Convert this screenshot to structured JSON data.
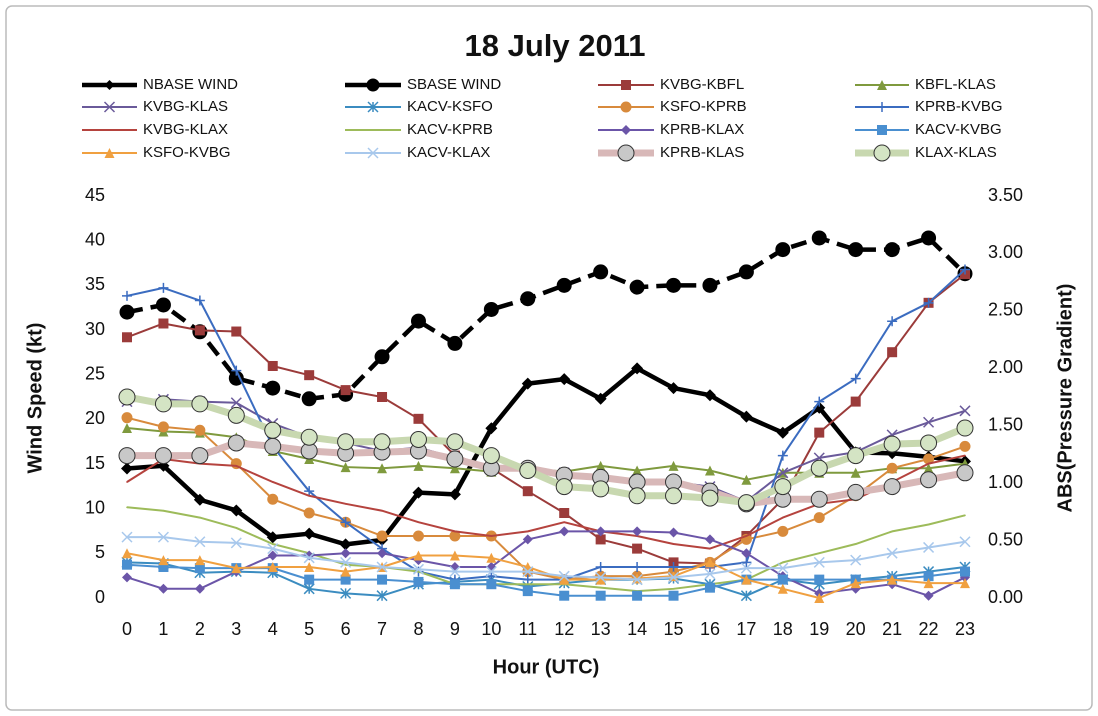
{
  "chart_data": {
    "type": "line",
    "title": "18 July 2011",
    "x_label": "Hour (UTC)",
    "y_label": "Wind Speed (kt)",
    "y2_label": "ABS(Pressure Gradient)",
    "categories": [
      "0",
      "1",
      "2",
      "3",
      "4",
      "5",
      "6",
      "7",
      "8",
      "9",
      "10",
      "11",
      "12",
      "13",
      "14",
      "15",
      "16",
      "17",
      "18",
      "19",
      "20",
      "21",
      "22",
      "23"
    ],
    "ylim": [
      0,
      45
    ],
    "yticks": [
      0,
      5,
      10,
      15,
      20,
      25,
      30,
      35,
      40,
      45
    ],
    "y2lim": [
      0,
      3.5
    ],
    "y2ticks": [
      {
        "value": 0,
        "label": "0.00"
      },
      {
        "value": 0.5,
        "label": "0.50"
      },
      {
        "value": 1,
        "label": "1.00"
      },
      {
        "value": 1.5,
        "label": "1.50"
      },
      {
        "value": 2,
        "label": "2.00"
      },
      {
        "value": 2.5,
        "label": "2.50"
      },
      {
        "value": 3,
        "label": "3.00"
      },
      {
        "value": 3.5,
        "label": "3.50"
      }
    ],
    "grid": false,
    "series": [
      {
        "name": "NBASE WIND",
        "color": "#000000",
        "marker": "diamond",
        "bold": true,
        "values": [
          14.5,
          14.8,
          11,
          9.8,
          6.8,
          7.2,
          6,
          6.5,
          11.8,
          11.6,
          19,
          24,
          24.5,
          22.3,
          25.7,
          23.5,
          22.7,
          20.3,
          18.5,
          21.3,
          16.3,
          16.2,
          15.8,
          15.3
        ]
      },
      {
        "name": "SBASE WIND",
        "color": "#000000",
        "marker": "circle",
        "bold": true,
        "dashed": true,
        "values": [
          32,
          32.8,
          29.8,
          24.6,
          23.5,
          22.3,
          22.8,
          27,
          31,
          28.5,
          32.3,
          33.5,
          35,
          36.5,
          34.8,
          35,
          35,
          36.5,
          39,
          40.3,
          39,
          39,
          40.3,
          36.3
        ]
      },
      {
        "name": "KVBG-KBFL",
        "color": "#9b3b3a",
        "marker": "square",
        "axis": "y2",
        "values": [
          2.27,
          2.39,
          2.33,
          2.32,
          2.02,
          1.94,
          1.81,
          1.75,
          1.56,
          1.24,
          1.13,
          0.93,
          0.74,
          0.51,
          0.43,
          0.31,
          0.3,
          0.54,
          0.86,
          1.44,
          1.71,
          2.14,
          2.57,
          2.82
        ]
      },
      {
        "name": "KBFL-KLAS",
        "color": "#7f9a3e",
        "marker": "triangle",
        "axis": "y2",
        "values": [
          1.48,
          1.45,
          1.44,
          1.4,
          1.28,
          1.21,
          1.14,
          1.13,
          1.15,
          1.13,
          1.1,
          1.13,
          1.1,
          1.15,
          1.11,
          1.15,
          1.11,
          1.03,
          1.09,
          1.09,
          1.09,
          1.13,
          1.13,
          1.17
        ]
      },
      {
        "name": "KVBG-KLAS",
        "color": "#6a5a9a",
        "marker": "x",
        "axis": "y2",
        "values": [
          1.71,
          1.73,
          1.71,
          1.7,
          1.52,
          1.4,
          1.35,
          1.28,
          1.31,
          1.22,
          1.14,
          1.14,
          1.09,
          1.05,
          1.03,
          1.01,
          0.97,
          0.84,
          1.09,
          1.22,
          1.27,
          1.42,
          1.53,
          1.63
        ]
      },
      {
        "name": "KACV-KSFO",
        "color": "#3b8cc0",
        "marker": "asterisk",
        "axis": "y2",
        "values": [
          0.31,
          0.3,
          0.22,
          0.23,
          0.22,
          0.08,
          0.04,
          0.02,
          0.12,
          0.14,
          0.16,
          0.1,
          0.13,
          0.16,
          0.16,
          0.17,
          0.12,
          0.02,
          0.16,
          0.12,
          0.16,
          0.19,
          0.23,
          0.27
        ]
      },
      {
        "name": "KSFO-KPRB",
        "color": "#d88a3c",
        "marker": "circle",
        "axis": "y2",
        "values": [
          1.57,
          1.49,
          1.46,
          1.17,
          0.86,
          0.74,
          0.66,
          0.54,
          0.54,
          0.54,
          0.54,
          0.23,
          0.16,
          0.19,
          0.19,
          0.23,
          0.31,
          0.51,
          0.58,
          0.7,
          0.89,
          1.13,
          1.21,
          1.32
        ]
      },
      {
        "name": "KPRB-KVBG",
        "color": "#3b6cc0",
        "marker": "plus",
        "axis": "y2",
        "values": [
          2.63,
          2.7,
          2.59,
          1.98,
          1.32,
          0.93,
          0.66,
          0.43,
          0.23,
          0.16,
          0.19,
          0.16,
          0.16,
          0.27,
          0.27,
          0.27,
          0.27,
          0.31,
          1.24,
          1.71,
          1.91,
          2.41,
          2.57,
          2.86
        ]
      },
      {
        "name": "KVBG-KLAX",
        "color": "#b5433e",
        "marker": "none",
        "axis": "y2",
        "values": [
          1.01,
          1.21,
          1.17,
          1.15,
          1.01,
          0.89,
          0.82,
          0.76,
          0.66,
          0.58,
          0.54,
          0.58,
          0.66,
          0.58,
          0.54,
          0.47,
          0.43,
          0.54,
          0.7,
          0.82,
          0.86,
          1.01,
          1.17,
          1.24
        ]
      },
      {
        "name": "KACV-KPRB",
        "color": "#9dbb5a",
        "marker": "none",
        "axis": "y2",
        "values": [
          0.79,
          0.76,
          0.7,
          0.61,
          0.47,
          0.39,
          0.29,
          0.27,
          0.23,
          0.12,
          0.12,
          0.12,
          0.12,
          0.09,
          0.06,
          0.08,
          0.12,
          0.16,
          0.31,
          0.39,
          0.47,
          0.58,
          0.64,
          0.72
        ]
      },
      {
        "name": "KPRB-KLAX",
        "color": "#6b55a8",
        "marker": "diamond",
        "axis": "y2",
        "values": [
          0.18,
          0.08,
          0.08,
          0.23,
          0.37,
          0.37,
          0.39,
          0.39,
          0.33,
          0.27,
          0.27,
          0.51,
          0.58,
          0.58,
          0.58,
          0.57,
          0.51,
          0.39,
          0.19,
          0.04,
          0.08,
          0.12,
          0.02,
          0.18
        ]
      },
      {
        "name": "KACV-KVBG",
        "color": "#4a8fd0",
        "marker": "square",
        "axis": "y2",
        "values": [
          0.29,
          0.27,
          0.26,
          0.26,
          0.26,
          0.16,
          0.16,
          0.16,
          0.14,
          0.12,
          0.12,
          0.06,
          0.02,
          0.02,
          0.02,
          0.02,
          0.09,
          0.16,
          0.16,
          0.16,
          0.16,
          0.16,
          0.19,
          0.23
        ]
      },
      {
        "name": "KSFO-KVBG",
        "color": "#f0a040",
        "marker": "triangle",
        "axis": "y2",
        "values": [
          0.39,
          0.33,
          0.33,
          0.26,
          0.27,
          0.27,
          0.23,
          0.27,
          0.37,
          0.37,
          0.35,
          0.27,
          0.16,
          0.16,
          0.17,
          0.19,
          0.31,
          0.16,
          0.08,
          0.0,
          0.13,
          0.16,
          0.13,
          0.13
        ]
      },
      {
        "name": "KACV-KLAX",
        "color": "#a8c8ec",
        "marker": "x",
        "axis": "y2",
        "values": [
          0.53,
          0.53,
          0.49,
          0.48,
          0.43,
          0.35,
          0.31,
          0.27,
          0.25,
          0.23,
          0.23,
          0.23,
          0.19,
          0.18,
          0.16,
          0.18,
          0.21,
          0.26,
          0.26,
          0.31,
          0.33,
          0.39,
          0.44,
          0.49
        ]
      },
      {
        "name": "KPRB-KLAS",
        "color": "#d8b8b8",
        "marker": "circle",
        "marker_fill": "#c8c8c8",
        "thick": true,
        "axis": "y2",
        "values": [
          1.24,
          1.24,
          1.24,
          1.35,
          1.32,
          1.28,
          1.26,
          1.27,
          1.28,
          1.21,
          1.13,
          1.13,
          1.07,
          1.05,
          1.01,
          1.01,
          0.93,
          0.82,
          0.86,
          0.86,
          0.92,
          0.97,
          1.03,
          1.09
        ]
      },
      {
        "name": "KLAX-KLAS",
        "color": "#c8d8b0",
        "marker": "circle",
        "marker_fill": "#d4e4c4",
        "thick": true,
        "axis": "y2",
        "values": [
          1.75,
          1.69,
          1.69,
          1.59,
          1.46,
          1.4,
          1.36,
          1.36,
          1.38,
          1.36,
          1.24,
          1.11,
          0.97,
          0.95,
          0.89,
          0.89,
          0.87,
          0.83,
          0.97,
          1.13,
          1.24,
          1.34,
          1.35,
          1.48
        ]
      }
    ]
  }
}
